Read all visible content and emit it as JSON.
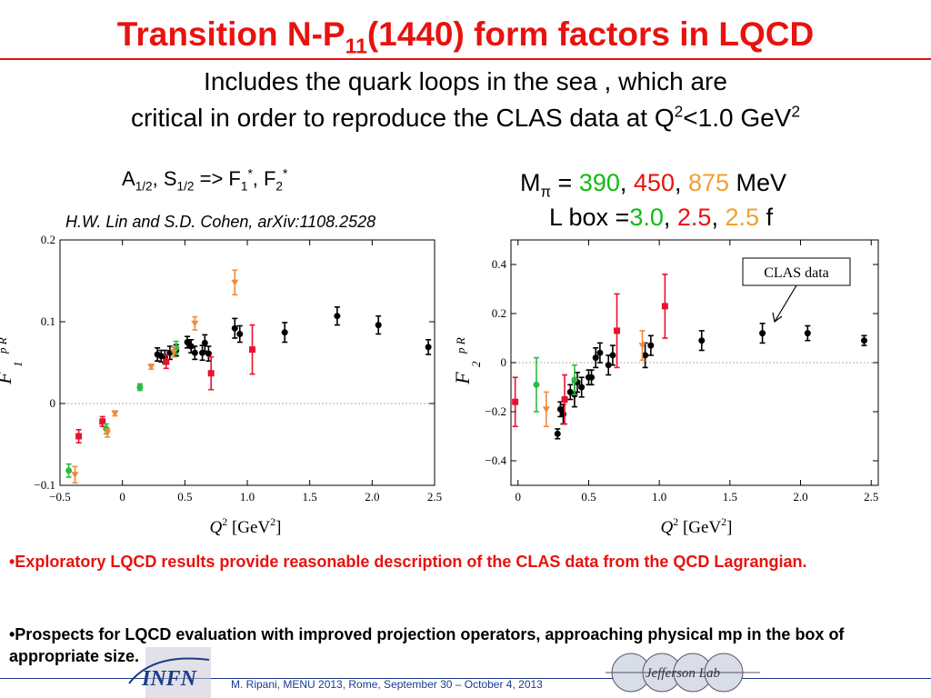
{
  "title": {
    "pre": "Transition N-P",
    "sub": "11",
    "post": "(1440) form factors in LQCD"
  },
  "subtitle": {
    "line1": "Includes the quark loops in the sea , which are",
    "line2_pre": "critical in order to reproduce the CLAS data at Q",
    "line2_sup1": "2",
    "line2_mid": "<1.0 GeV",
    "line2_sup2": "2"
  },
  "left_label": {
    "a": "A",
    "a_sub": "1/2",
    "comma": ", S",
    "s_sub": "1/2",
    "arrow": " => F",
    "f1_sub": "1",
    "star": "*",
    "sep": ", F",
    "f2_sub": "2",
    "star2": "*"
  },
  "reference": "H.W. Lin and S.D. Cohen, arXiv:1108.2528",
  "params": {
    "m_label": "M",
    "m_sub": "π",
    "eq": " = ",
    "m1": "390",
    "c1": ", ",
    "m2": "450",
    "c2": ", ",
    "m3": "875",
    "unit": " MeV",
    "l_label": "L box =",
    "l1": "3.0",
    "lc1": ", ",
    "l2": "2.5",
    "lc2": ", ",
    "l3": "2.5",
    "l_unit": " f"
  },
  "colors": {
    "black": "#000000",
    "red": "#e8122e",
    "green": "#2bbb44",
    "orange": "#f08a3c"
  },
  "clas_label": "CLAS data",
  "chart_data": [
    {
      "type": "scatter",
      "xlabel": "Q² [GeV²]",
      "ylabel": "F1 p R",
      "xlim": [
        -0.5,
        2.5
      ],
      "ylim": [
        -0.1,
        0.2
      ],
      "xticks": [
        -0.5,
        0,
        0.5,
        1.0,
        1.5,
        2.0,
        2.5
      ],
      "xtick_labels": [
        "−0.5",
        "0",
        "0.5",
        "1.0",
        "1.5",
        "2.0",
        "2.5"
      ],
      "yticks": [
        -0.1,
        0,
        0.1,
        0.2
      ],
      "ytick_labels": [
        "−0.1",
        "0",
        "0.1",
        "0.2"
      ],
      "zero_line": true,
      "series": [
        {
          "color": "black",
          "marker": "circle",
          "points": [
            [
              0.28,
              0.06,
              0.008
            ],
            [
              0.31,
              0.058,
              0.007
            ],
            [
              0.34,
              0.057,
              0.008
            ],
            [
              0.38,
              0.062,
              0.008
            ],
            [
              0.43,
              0.065,
              0.007
            ],
            [
              0.52,
              0.075,
              0.007
            ],
            [
              0.55,
              0.07,
              0.008
            ],
            [
              0.58,
              0.062,
              0.008
            ],
            [
              0.64,
              0.062,
              0.009
            ],
            [
              0.66,
              0.074,
              0.01
            ],
            [
              0.69,
              0.061,
              0.009
            ],
            [
              0.9,
              0.092,
              0.012
            ],
            [
              0.94,
              0.085,
              0.01
            ],
            [
              1.3,
              0.087,
              0.012
            ],
            [
              1.72,
              0.107,
              0.011
            ],
            [
              2.05,
              0.096,
              0.011
            ],
            [
              2.45,
              0.069,
              0.009
            ]
          ]
        },
        {
          "color": "red",
          "marker": "square",
          "points": [
            [
              -0.35,
              -0.04,
              0.008
            ],
            [
              -0.16,
              -0.022,
              0.006
            ],
            [
              0.35,
              0.051,
              0.008
            ],
            [
              0.71,
              0.037,
              0.02
            ],
            [
              1.04,
              0.066,
              0.03
            ]
          ]
        },
        {
          "color": "green",
          "marker": "circle",
          "points": [
            [
              -0.43,
              -0.082,
              0.008
            ],
            [
              -0.13,
              -0.031,
              0.006
            ],
            [
              0.14,
              0.02,
              0.004
            ],
            [
              0.43,
              0.068,
              0.008
            ]
          ]
        },
        {
          "color": "orange",
          "marker": "triangle",
          "points": [
            [
              -0.38,
              -0.087,
              0.01
            ],
            [
              -0.12,
              -0.036,
              0.005
            ],
            [
              -0.06,
              -0.012,
              0.003
            ],
            [
              0.23,
              0.045,
              0.003
            ],
            [
              0.41,
              0.063,
              0.006
            ],
            [
              0.58,
              0.098,
              0.008
            ],
            [
              0.9,
              0.148,
              0.015
            ]
          ]
        }
      ]
    },
    {
      "type": "scatter",
      "xlabel": "Q² [GeV²]",
      "ylabel": "F2 p R",
      "xlim": [
        -0.05,
        2.55
      ],
      "ylim": [
        -0.5,
        0.5
      ],
      "xticks": [
        0,
        0.5,
        1.0,
        1.5,
        2.0,
        2.5
      ],
      "xtick_labels": [
        "0",
        "0.5",
        "1.0",
        "1.5",
        "2.0",
        "2.5"
      ],
      "yticks": [
        -0.4,
        -0.2,
        0,
        0.2,
        0.4
      ],
      "ytick_labels": [
        "−0.4",
        "−0.2",
        "0",
        "0.2",
        "0.4"
      ],
      "zero_line": true,
      "series": [
        {
          "color": "black",
          "marker": "circle",
          "points": [
            [
              0.28,
              -0.29,
              0.02
            ],
            [
              0.3,
              -0.19,
              0.03
            ],
            [
              0.32,
              -0.21,
              0.04
            ],
            [
              0.37,
              -0.12,
              0.03
            ],
            [
              0.4,
              -0.13,
              0.05
            ],
            [
              0.42,
              -0.08,
              0.04
            ],
            [
              0.45,
              -0.1,
              0.04
            ],
            [
              0.5,
              -0.06,
              0.03
            ],
            [
              0.52,
              -0.06,
              0.03
            ],
            [
              0.55,
              0.02,
              0.04
            ],
            [
              0.58,
              0.04,
              0.04
            ],
            [
              0.64,
              -0.01,
              0.04
            ],
            [
              0.67,
              0.03,
              0.04
            ],
            [
              0.9,
              0.03,
              0.05
            ],
            [
              0.94,
              0.07,
              0.04
            ],
            [
              1.3,
              0.09,
              0.04
            ],
            [
              1.73,
              0.12,
              0.04
            ],
            [
              2.05,
              0.12,
              0.03
            ],
            [
              2.45,
              0.09,
              0.02
            ]
          ]
        },
        {
          "color": "red",
          "marker": "square",
          "points": [
            [
              -0.02,
              -0.16,
              0.1
            ],
            [
              0.33,
              -0.15,
              0.1
            ],
            [
              0.7,
              0.13,
              0.15
            ],
            [
              1.04,
              0.23,
              0.13
            ]
          ]
        },
        {
          "color": "green",
          "marker": "circle",
          "points": [
            [
              0.13,
              -0.09,
              0.11
            ],
            [
              0.4,
              -0.07,
              0.06
            ]
          ]
        },
        {
          "color": "orange",
          "marker": "triangle",
          "points": [
            [
              0.2,
              -0.19,
              0.07
            ],
            [
              0.88,
              0.07,
              0.06
            ]
          ]
        }
      ]
    }
  ],
  "bullets": [
    "•Exploratory LQCD results  provide  reasonable description of the CLAS data from the QCD Lagrangian.",
    "•Prospects for LQCD evaluation with improved projection operators, approaching physical mp in the box of appropriate size."
  ],
  "footer": "M. Ripani, MENU 2013, Rome, September 30 – October 4, 2013",
  "logos": {
    "infn": "INFN",
    "jlab": "Jefferson Lab"
  }
}
